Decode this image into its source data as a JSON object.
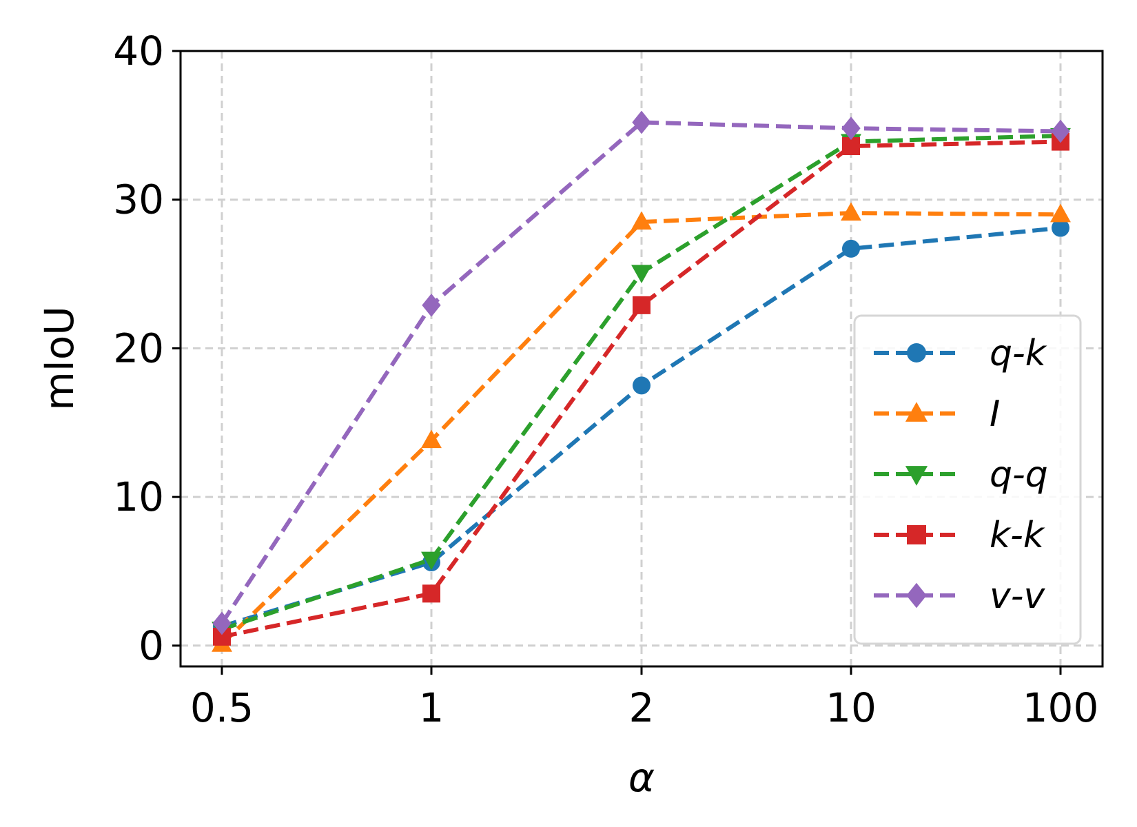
{
  "chart_data": {
    "type": "line",
    "title": "",
    "xlabel": "α",
    "ylabel": "mIoU",
    "categories": [
      "0.5",
      "1",
      "2",
      "10",
      "100"
    ],
    "ylim": [
      -1.4,
      40
    ],
    "yticks": [
      0,
      10,
      20,
      30,
      40
    ],
    "grid": true,
    "legend_position": "lower-right",
    "series": [
      {
        "name": "q-k",
        "color": "#1f77b4",
        "marker": "circle",
        "values": [
          1.3,
          5.6,
          17.5,
          26.7,
          28.1
        ]
      },
      {
        "name": "I",
        "color": "#ff7f0e",
        "marker": "triangle-up",
        "values": [
          0.1,
          13.8,
          28.5,
          29.1,
          29.0
        ]
      },
      {
        "name": "q-q",
        "color": "#2ca02c",
        "marker": "triangle-down",
        "values": [
          1.1,
          5.8,
          25.1,
          33.9,
          34.3
        ]
      },
      {
        "name": "k-k",
        "color": "#d62728",
        "marker": "square",
        "values": [
          0.6,
          3.5,
          22.9,
          33.6,
          33.9
        ]
      },
      {
        "name": "v-v",
        "color": "#9467bd",
        "marker": "diamond",
        "values": [
          1.5,
          22.9,
          35.2,
          34.8,
          34.6
        ]
      }
    ]
  }
}
